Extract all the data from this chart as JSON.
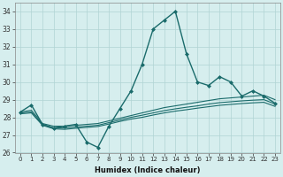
{
  "title": "",
  "xlabel": "Humidex (Indice chaleur)",
  "bg_color": "#d6eeee",
  "grid_color": "#b0d4d4",
  "line_color": "#1a6b6b",
  "xlim": [
    -0.5,
    23.5
  ],
  "ylim": [
    26,
    34.5
  ],
  "yticks": [
    26,
    27,
    28,
    29,
    30,
    31,
    32,
    33,
    34
  ],
  "xticks": [
    0,
    1,
    2,
    3,
    4,
    5,
    6,
    7,
    8,
    9,
    10,
    11,
    12,
    13,
    14,
    15,
    16,
    17,
    18,
    19,
    20,
    21,
    22,
    23
  ],
  "series": [
    {
      "x": [
        0,
        1,
        2,
        3,
        4,
        5,
        6,
        7,
        8,
        9,
        10,
        11,
        12,
        13,
        14,
        15,
        16,
        17,
        18,
        19,
        20,
        21,
        22,
        23
      ],
      "y": [
        28.3,
        28.7,
        27.6,
        27.4,
        27.5,
        27.6,
        26.6,
        26.3,
        27.5,
        28.5,
        29.5,
        31.0,
        33.0,
        33.5,
        34.0,
        31.6,
        30.0,
        29.8,
        30.3,
        30.0,
        29.2,
        29.5,
        29.2,
        28.8
      ],
      "marker": "D",
      "markersize": 2.0,
      "linewidth": 1.0
    },
    {
      "x": [
        0,
        1,
        2,
        3,
        4,
        5,
        6,
        7,
        8,
        9,
        10,
        11,
        12,
        13,
        14,
        15,
        16,
        17,
        18,
        19,
        20,
        21,
        22,
        23
      ],
      "y": [
        28.3,
        28.4,
        27.65,
        27.5,
        27.5,
        27.55,
        27.6,
        27.65,
        27.8,
        27.95,
        28.1,
        28.25,
        28.4,
        28.55,
        28.65,
        28.75,
        28.85,
        28.95,
        29.05,
        29.1,
        29.15,
        29.2,
        29.25,
        29.0
      ],
      "marker": null,
      "markersize": 0,
      "linewidth": 0.8
    },
    {
      "x": [
        0,
        1,
        2,
        3,
        4,
        5,
        6,
        7,
        8,
        9,
        10,
        11,
        12,
        13,
        14,
        15,
        16,
        17,
        18,
        19,
        20,
        21,
        22,
        23
      ],
      "y": [
        28.25,
        28.3,
        27.6,
        27.4,
        27.4,
        27.45,
        27.5,
        27.55,
        27.7,
        27.85,
        28.0,
        28.12,
        28.25,
        28.38,
        28.48,
        28.57,
        28.65,
        28.75,
        28.83,
        28.88,
        28.93,
        28.97,
        29.0,
        28.75
      ],
      "marker": null,
      "markersize": 0,
      "linewidth": 0.8
    },
    {
      "x": [
        0,
        1,
        2,
        3,
        4,
        5,
        6,
        7,
        8,
        9,
        10,
        11,
        12,
        13,
        14,
        15,
        16,
        17,
        18,
        19,
        20,
        21,
        22,
        23
      ],
      "y": [
        28.2,
        28.25,
        27.55,
        27.35,
        27.32,
        27.38,
        27.43,
        27.48,
        27.62,
        27.77,
        27.9,
        28.0,
        28.13,
        28.25,
        28.35,
        28.43,
        28.52,
        28.6,
        28.68,
        28.73,
        28.78,
        28.82,
        28.85,
        28.62
      ],
      "marker": null,
      "markersize": 0,
      "linewidth": 0.8
    }
  ]
}
